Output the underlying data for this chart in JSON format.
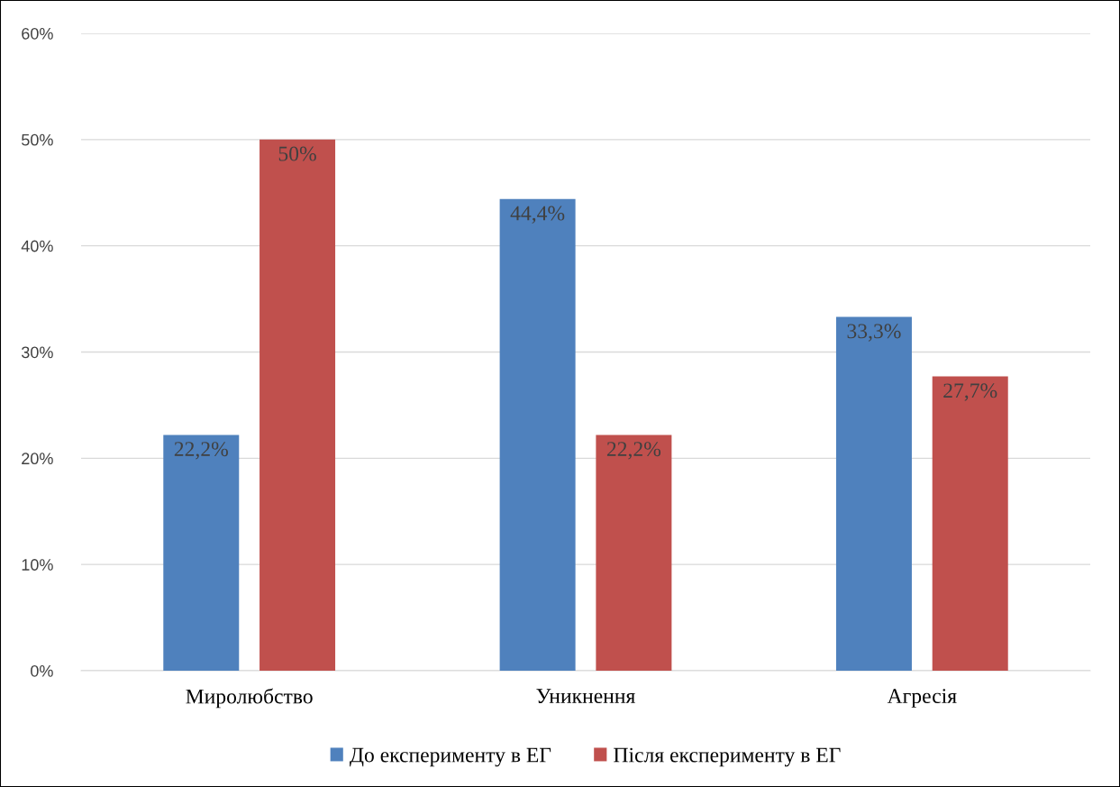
{
  "chart_data": {
    "type": "bar",
    "categories": [
      "Миролюбство",
      "Уникнення",
      "Агресія"
    ],
    "series": [
      {
        "name": "До експерименту в ЕГ",
        "color": "#4f81bd",
        "values": [
          22.2,
          44.4,
          33.3
        ],
        "value_labels": [
          "22,2%",
          "44,4%",
          "33,3%"
        ]
      },
      {
        "name": "Після експерименту в ЕГ",
        "color": "#c0504d",
        "values": [
          50,
          22.2,
          27.7
        ],
        "value_labels": [
          "50%",
          "22,2%",
          "27,7%"
        ]
      }
    ],
    "ylim": [
      0,
      60
    ],
    "yticks": [
      {
        "value": 0,
        "label": "0%"
      },
      {
        "value": 10,
        "label": "10%"
      },
      {
        "value": 20,
        "label": "20%"
      },
      {
        "value": 30,
        "label": "30%"
      },
      {
        "value": 40,
        "label": "40%"
      },
      {
        "value": 50,
        "label": "50%"
      },
      {
        "value": 60,
        "label": "60%"
      }
    ],
    "grid": "y",
    "legend": "bottom"
  }
}
